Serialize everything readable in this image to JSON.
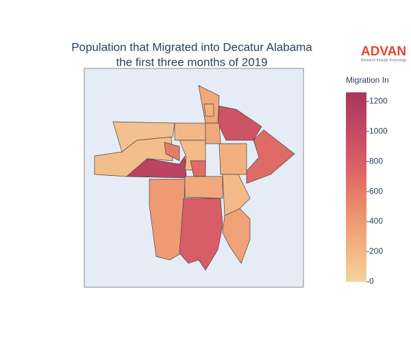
{
  "chart_data": {
    "type": "choropleth",
    "title": [
      "Population that Migrated into Decatur Alabama",
      "the first three months of 2019"
    ],
    "colorbar_title": "Migration In",
    "colorscale": [
      "#f5d3a0",
      "#f2b07f",
      "#eb8a6b",
      "#dc6266",
      "#c24a64",
      "#a8365c"
    ],
    "zlim": [
      0,
      1260
    ],
    "zticks": [
      0,
      200,
      400,
      600,
      800,
      1000,
      1200
    ],
    "values": [
      150,
      130,
      1100,
      200,
      600,
      180,
      700,
      300,
      900,
      700,
      250,
      400,
      800,
      300,
      180,
      350,
      250,
      300
    ]
  },
  "logo": {
    "name": "ADVAN",
    "tagline": "Research through Technology"
  }
}
